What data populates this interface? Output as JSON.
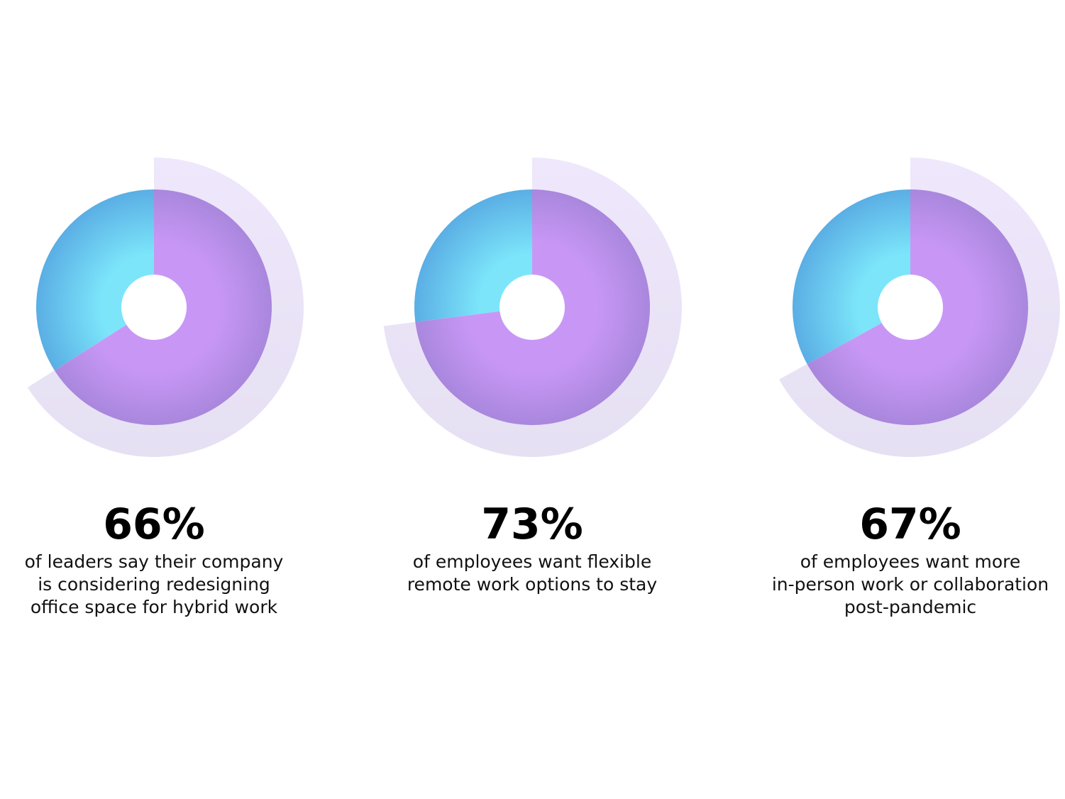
{
  "chart_data": [
    {
      "type": "pie",
      "value": 66,
      "value_label": "66%",
      "description_lines": [
        "of leaders say their company",
        "is considering redesigning",
        "office space for hybrid work"
      ]
    },
    {
      "type": "pie",
      "value": 73,
      "value_label": "73%",
      "description_lines": [
        "of employees want flexible",
        "remote work options to stay"
      ]
    },
    {
      "type": "pie",
      "value": 67,
      "value_label": "67%",
      "description_lines": [
        "of employees want more",
        "in-person work or collaboration",
        "post-pandemic"
      ]
    }
  ],
  "colors": {
    "highlight_slice_inner": "#c897f6",
    "highlight_slice_outer": "#a987dd",
    "remainder_slice_inner": "#7ce5fa",
    "remainder_slice_outer": "#5aaee4",
    "outer_arc": "#e6e0f3",
    "outer_arc_light": "#efe7fb",
    "center_hole": "#ffffff",
    "value_text": "#000000",
    "description_text": "#111111"
  }
}
